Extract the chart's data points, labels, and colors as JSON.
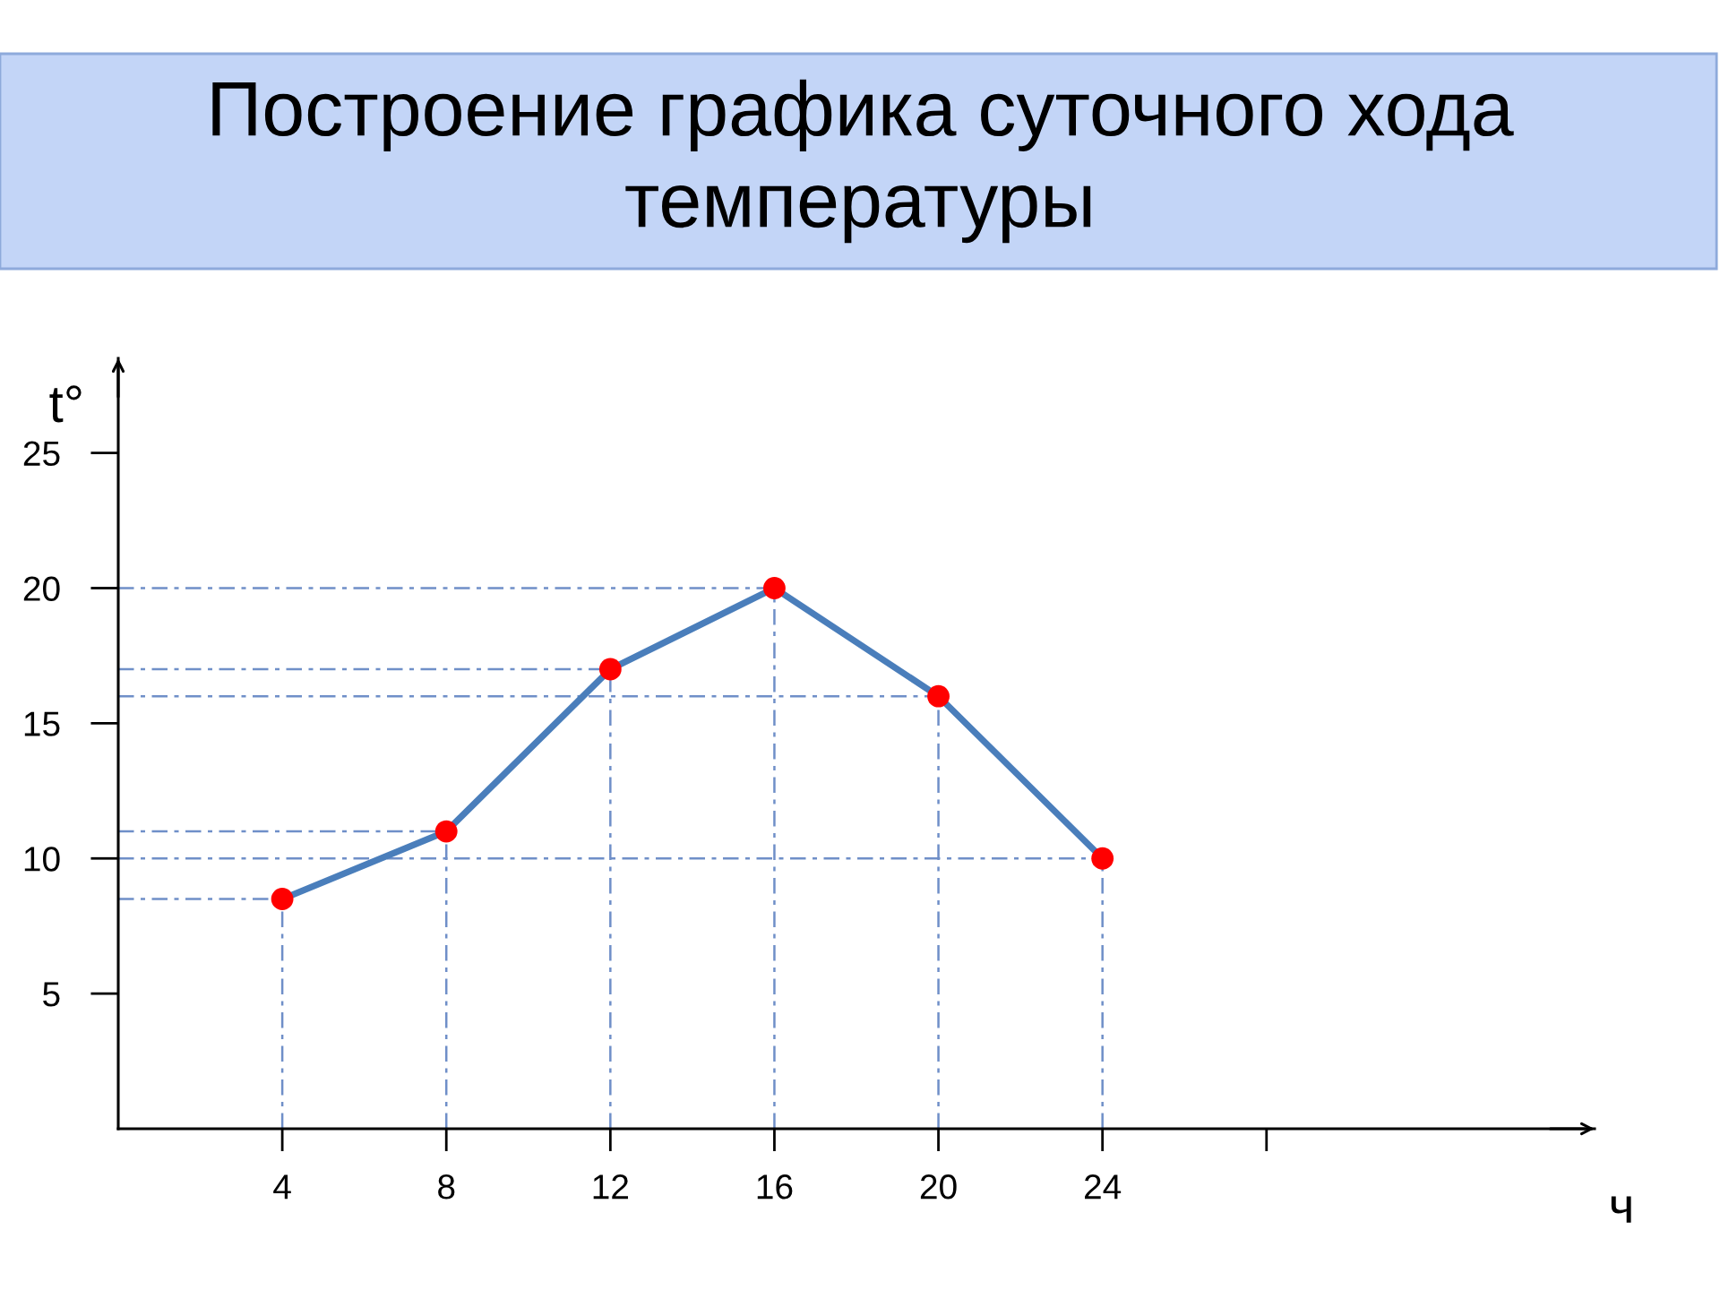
{
  "chart_data": {
    "type": "line",
    "title": "Построение графика суточного хода\nтемпературы",
    "xlabel": "ч",
    "ylabel": "t°",
    "x": [
      4,
      8,
      12,
      16,
      20,
      24
    ],
    "series": [
      {
        "color": "#4a7ebb",
        "colors": [
          "#ff0000",
          "#ff0000",
          "#ff0000",
          "#ff0000",
          "#ff0000",
          "#ff0000"
        ],
        "values": [
          8.5,
          11,
          17,
          20,
          16,
          10
        ]
      }
    ],
    "xlim": [
      0,
      36
    ],
    "xticks": [
      4,
      8,
      12,
      16,
      20,
      24,
      {
        "value": 28,
        "label": null
      }
    ],
    "ylim": [
      0,
      28.5
    ],
    "yticks": [
      5,
      10,
      15,
      20,
      25
    ],
    "marker": "circle",
    "line_style": "solid",
    "ref_lines": [
      {
        "axis": "y",
        "value": 8.5,
        "color": "#6f8fc8",
        "line_style": "dashed"
      },
      {
        "axis": "y",
        "value": 11,
        "color": "#6f8fc8",
        "line_style": "dashed"
      },
      {
        "axis": "y",
        "value": 17,
        "color": "#6f8fc8",
        "line_style": "dashed"
      },
      {
        "axis": "y",
        "value": 20,
        "color": "#6f8fc8",
        "line_style": "dashed"
      },
      {
        "axis": "y",
        "value": 16,
        "color": "#6f8fc8",
        "line_style": "dashed"
      },
      {
        "axis": "y",
        "value": 10,
        "color": "#6f8fc8",
        "line_style": "dashed"
      },
      {
        "axis": "x",
        "value": 4,
        "color": "#6f8fc8",
        "line_style": "dashed"
      },
      {
        "axis": "x",
        "value": 8,
        "color": "#6f8fc8",
        "line_style": "dashed"
      },
      {
        "axis": "x",
        "value": 12,
        "color": "#6f8fc8",
        "line_style": "dashed"
      },
      {
        "axis": "x",
        "value": 16,
        "color": "#6f8fc8",
        "line_style": "dashed"
      },
      {
        "axis": "x",
        "value": 20,
        "color": "#6f8fc8",
        "line_style": "dashed"
      },
      {
        "axis": "x",
        "value": 24,
        "color": "#6f8fc8",
        "line_style": "dashed"
      }
    ]
  }
}
